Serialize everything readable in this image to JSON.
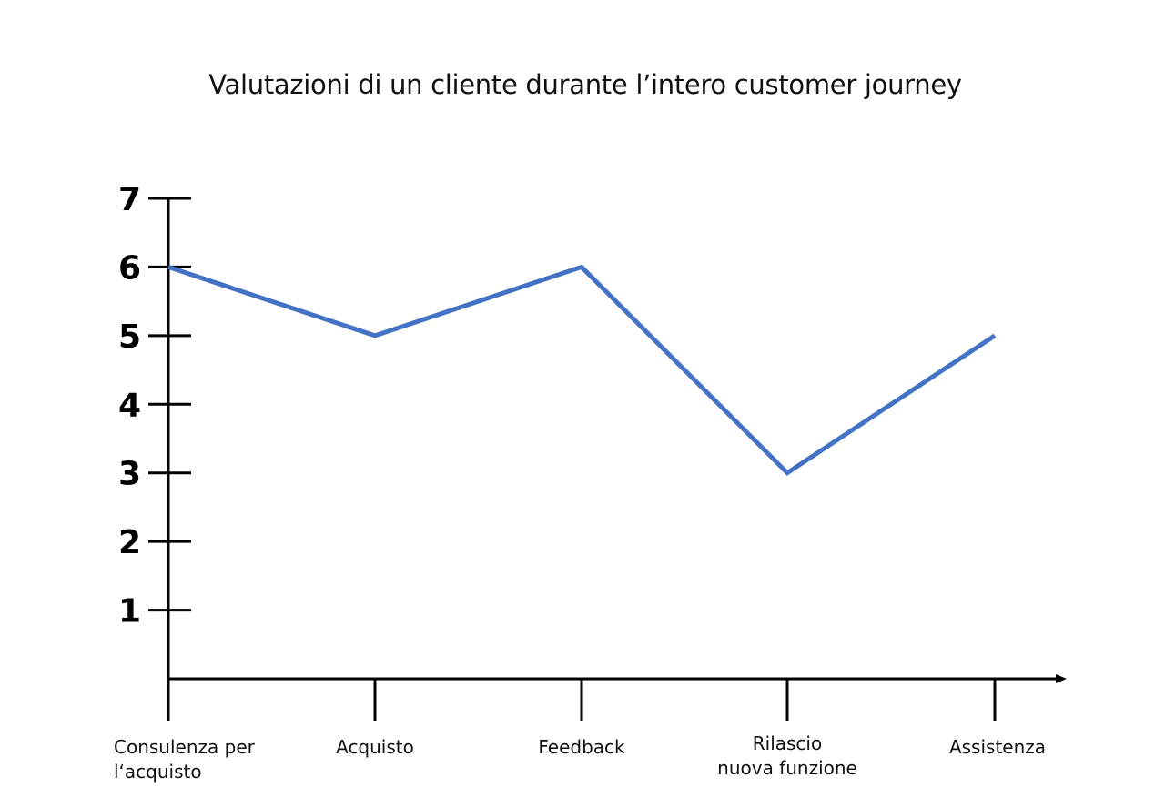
{
  "chart_data": {
    "type": "line",
    "title": "Valutazioni di un cliente durante l’intero customer journey",
    "xlabel": "",
    "ylabel": "",
    "categories": [
      [
        "Consulenza per",
        "l‘acquisto"
      ],
      [
        "Acquisto"
      ],
      [
        "Feedback"
      ],
      [
        "Rilascio",
        "nuova funzione"
      ],
      [
        "Assistenza"
      ]
    ],
    "series": [
      {
        "values": [
          6,
          5,
          6,
          3,
          5
        ],
        "color": "#4472C4"
      }
    ],
    "yticks": [
      1,
      2,
      3,
      4,
      5,
      6,
      7
    ],
    "ylim": [
      0,
      7
    ],
    "grid": false,
    "legend": "none",
    "axis_color": "#000000"
  }
}
